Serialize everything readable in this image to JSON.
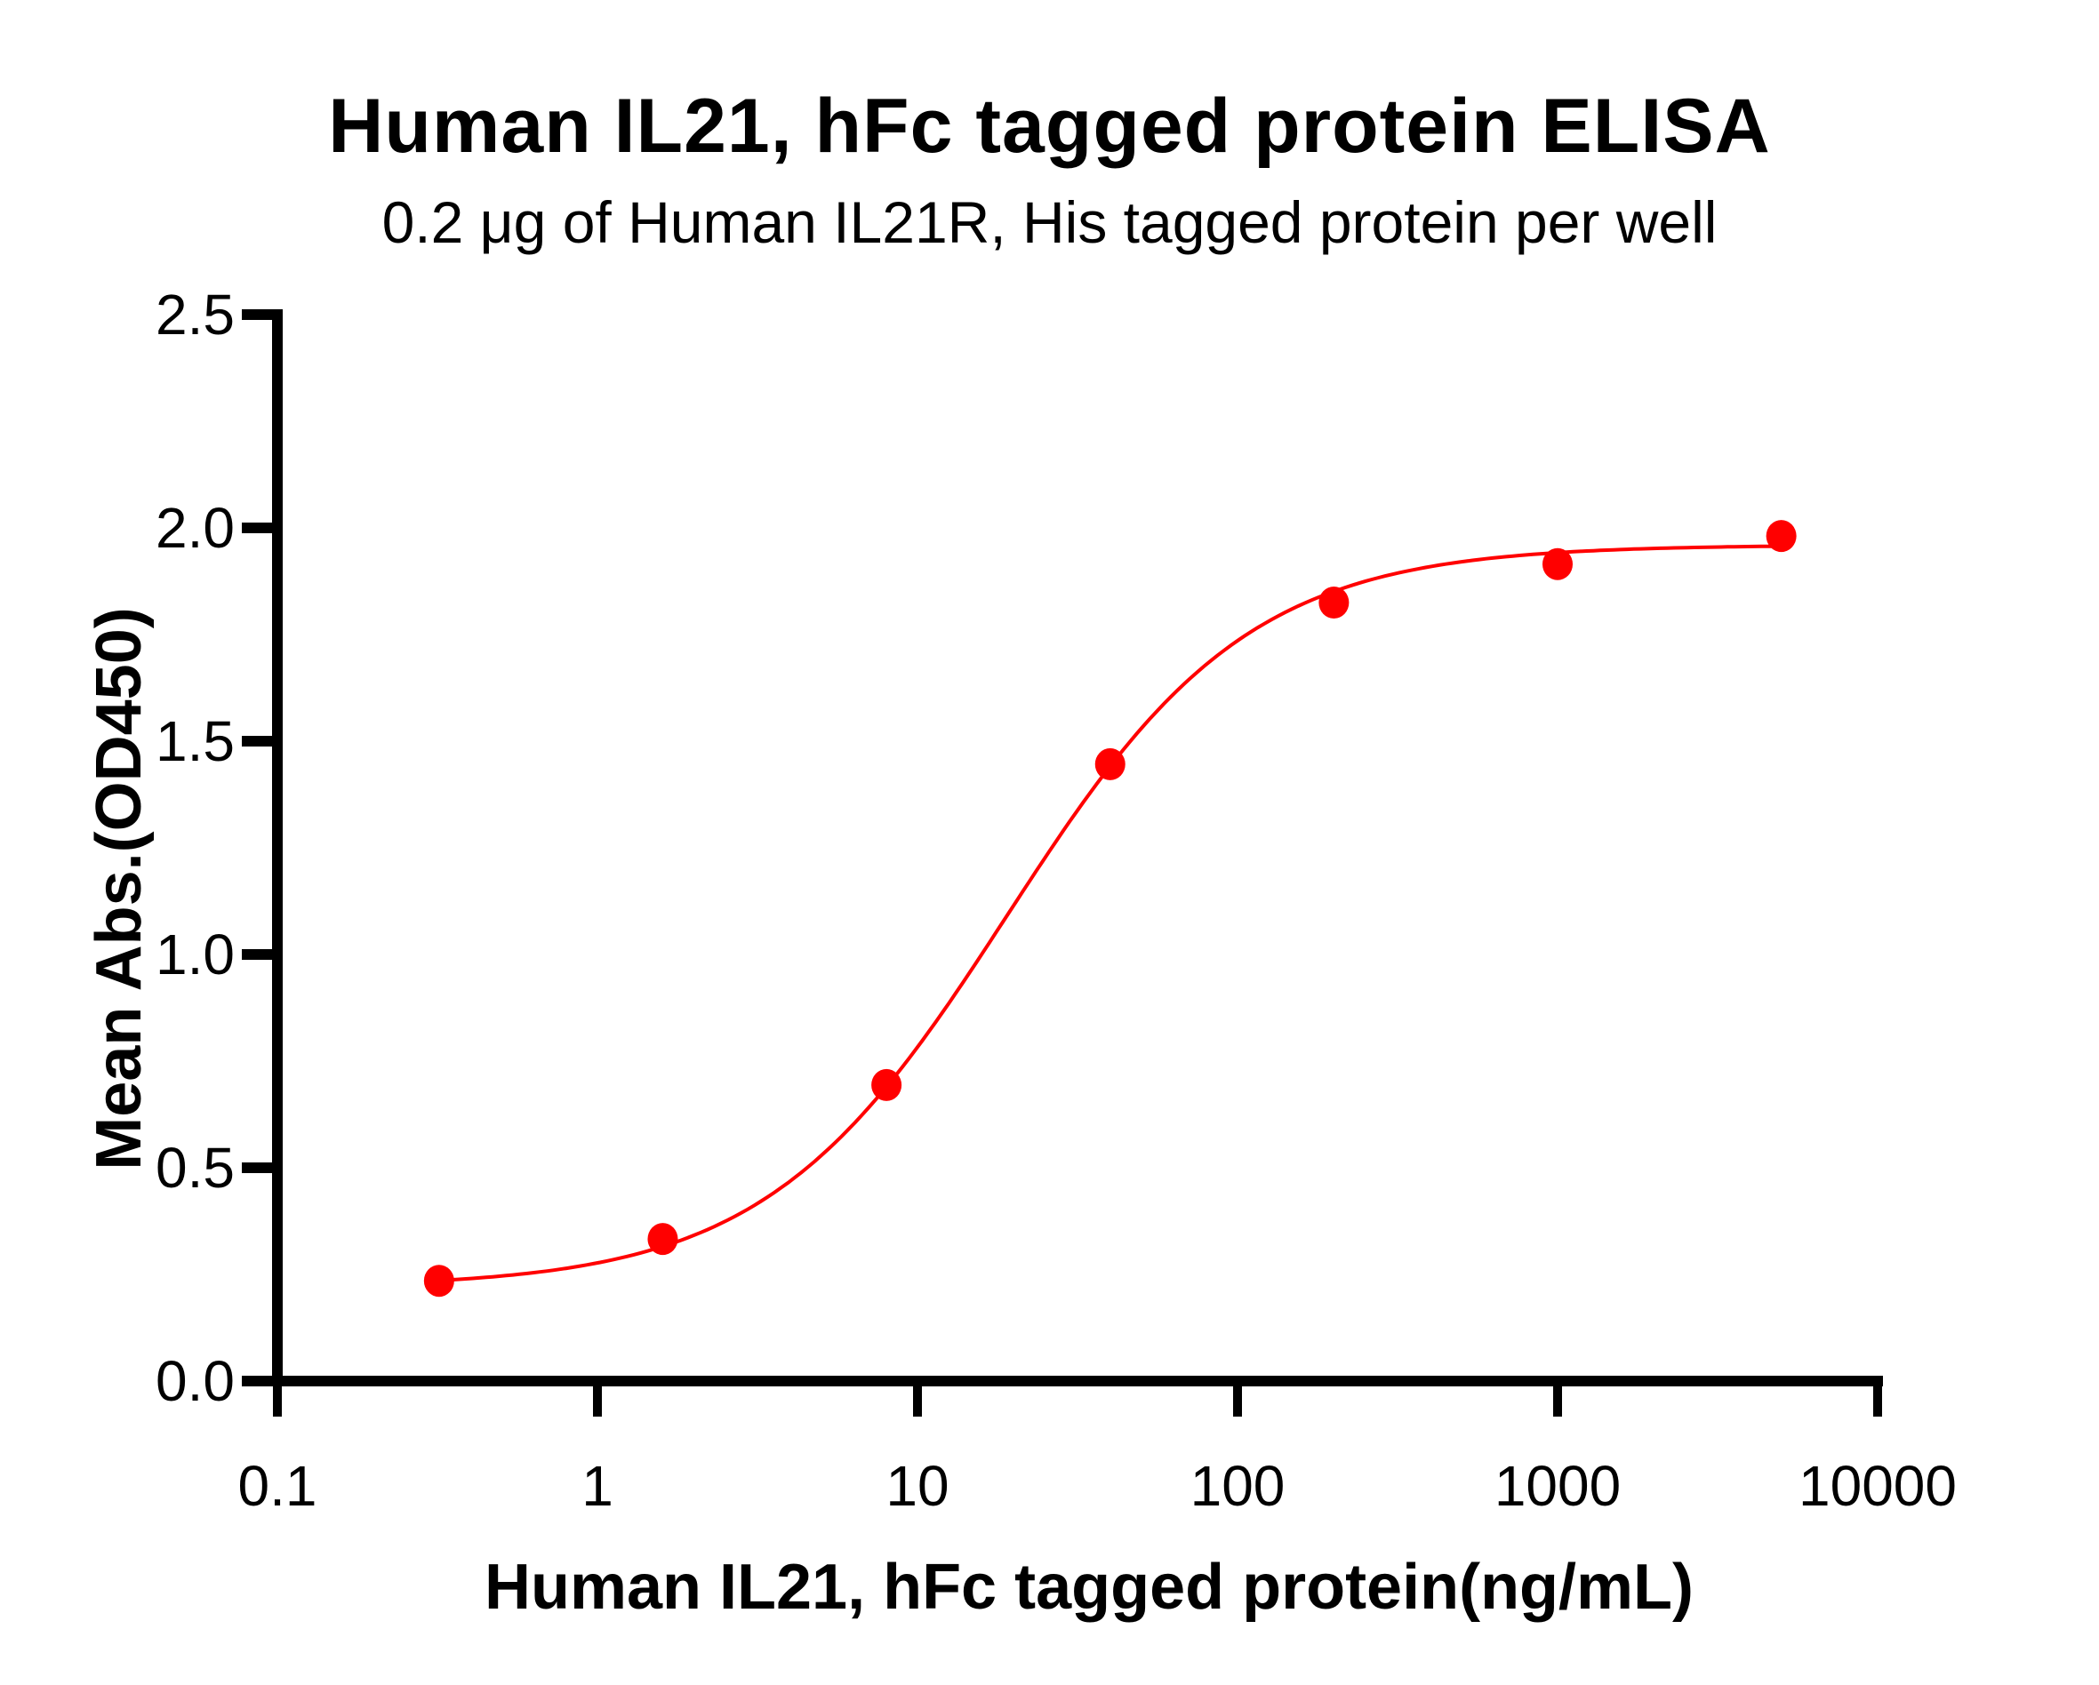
{
  "chart_data": {
    "type": "scatter",
    "title": "Human IL21, hFc tagged protein ELISA",
    "subtitle": "0.2 μg of Human IL21R, His tagged protein per well",
    "xlabel": "Human IL21, hFc tagged protein(ng/mL)",
    "ylabel": "Mean Abs.(OD450)",
    "xscale": "log",
    "xlim": [
      0.1,
      10000
    ],
    "ylim": [
      0,
      2.5
    ],
    "xticks": [
      0.1,
      1,
      10,
      100,
      1000,
      10000
    ],
    "xtick_labels": [
      "0.1",
      "1",
      "10",
      "100",
      "1000",
      "10000"
    ],
    "yticks": [
      0,
      0.5,
      1.0,
      1.5,
      2.0,
      2.5
    ],
    "ytick_labels": [
      "0.0",
      "0.5",
      "1.0",
      "1.5",
      "2.0",
      "2.5"
    ],
    "grid": false,
    "legend": null,
    "series": [
      {
        "name": "Human IL21, hFc tagged protein",
        "color": "#ff0000",
        "marker": "circle",
        "x": [
          0.32,
          1.6,
          8,
          40,
          200,
          1000,
          5000
        ],
        "y": [
          0.235,
          0.333,
          0.694,
          1.446,
          1.825,
          1.915,
          1.981
        ],
        "fit": {
          "type": "4PL sigmoidal",
          "bottom": 0.22,
          "top": 1.96,
          "ec50": 19,
          "hill": 1.15
        }
      }
    ]
  }
}
